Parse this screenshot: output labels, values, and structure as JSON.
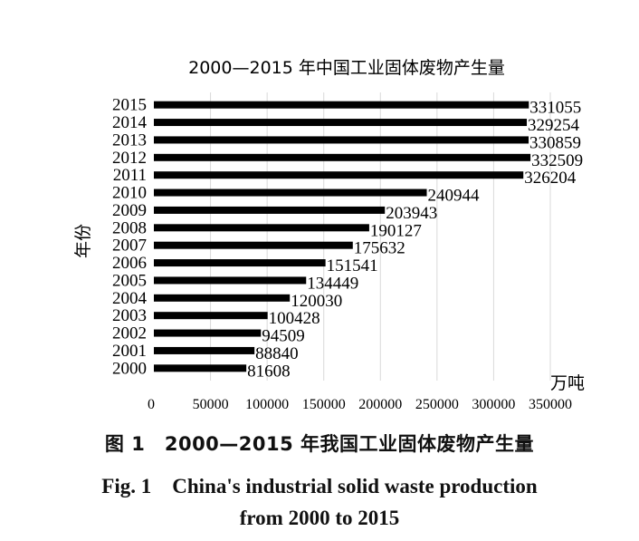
{
  "chart_data": {
    "type": "bar",
    "orientation": "horizontal",
    "title": "2000—2015 年中国工业固体废物产生量",
    "ylabel": "年份",
    "xlabel": "万吨",
    "categories": [
      "2015",
      "2014",
      "2013",
      "2012",
      "2011",
      "2010",
      "2009",
      "2008",
      "2007",
      "2006",
      "2005",
      "2004",
      "2003",
      "2002",
      "2001",
      "2000"
    ],
    "values": [
      331055,
      329254,
      330859,
      332509,
      326204,
      240944,
      203943,
      190127,
      175632,
      151541,
      134449,
      120030,
      100428,
      94509,
      88840,
      81608
    ],
    "value_labels": [
      "331055",
      "329254",
      "330859",
      "332509",
      "326204",
      "240944",
      "203943",
      "190127",
      "175632",
      "151541",
      "134449",
      "120030",
      "100428",
      "94509",
      "88840",
      "81608"
    ],
    "xlim": [
      0,
      350000
    ],
    "xticks": [
      "0",
      "50000",
      "100000",
      "150000",
      "200000",
      "250000",
      "300000",
      "350000"
    ],
    "xtick_values": [
      0,
      50000,
      100000,
      150000,
      200000,
      250000,
      300000,
      350000
    ],
    "grid": "vertical",
    "bar_color": "#000000"
  },
  "caption": {
    "cn": "图 1　2000—2015 年我国工业固体废物产生量",
    "en_line1": "Fig. 1　China's industrial solid waste production",
    "en_line2": "from 2000 to 2015"
  }
}
